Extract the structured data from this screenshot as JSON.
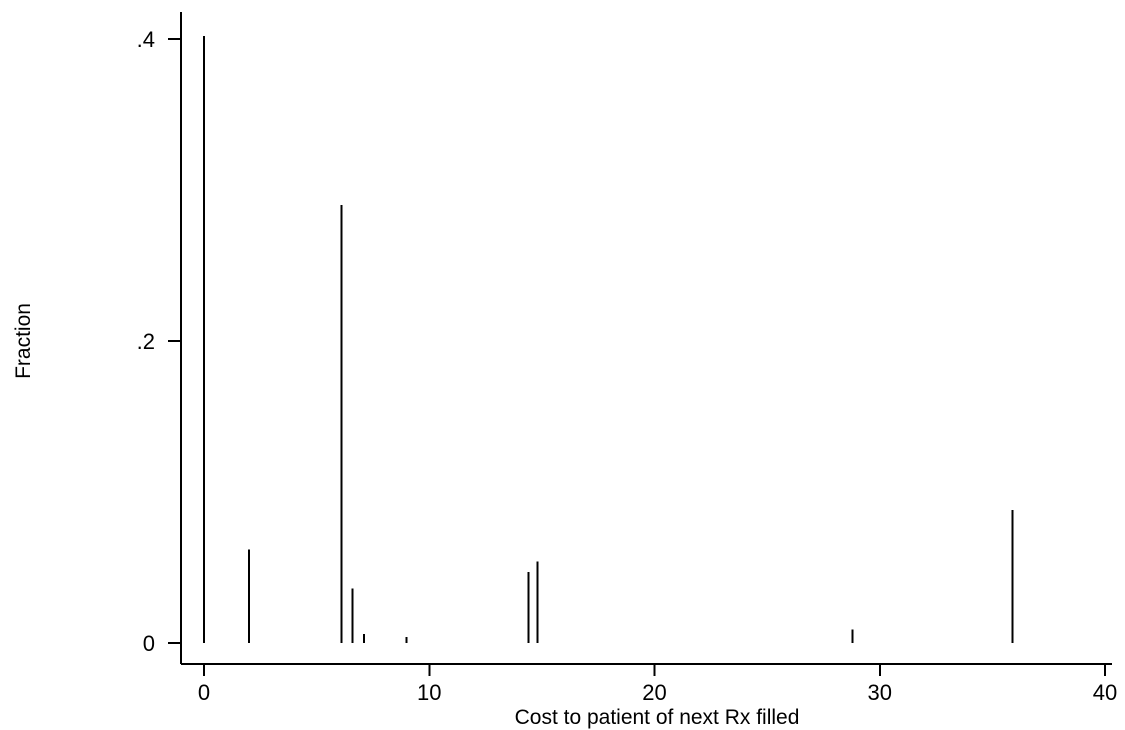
{
  "chart_data": {
    "type": "bar",
    "subtype": "spike",
    "title": "",
    "xlabel": "Cost to patient of next Rx filled",
    "ylabel": "Fraction",
    "xlim": [
      -1,
      40.5
    ],
    "ylim": [
      0,
      0.42
    ],
    "x_ticks": [
      0,
      10,
      20,
      30,
      40
    ],
    "x_tick_labels": [
      "0",
      "10",
      "20",
      "30",
      "40"
    ],
    "y_ticks": [
      0,
      0.2,
      0.4
    ],
    "y_tick_labels": [
      "0",
      ".2",
      ".4"
    ],
    "grid": false,
    "legend": "none",
    "points": [
      {
        "x": 0.0,
        "y": 0.402
      },
      {
        "x": 2.0,
        "y": 0.062
      },
      {
        "x": 6.1,
        "y": 0.29
      },
      {
        "x": 6.6,
        "y": 0.036
      },
      {
        "x": 7.1,
        "y": 0.006
      },
      {
        "x": 9.0,
        "y": 0.004
      },
      {
        "x": 14.4,
        "y": 0.047
      },
      {
        "x": 14.8,
        "y": 0.054
      },
      {
        "x": 28.8,
        "y": 0.009
      },
      {
        "x": 35.9,
        "y": 0.088
      }
    ]
  }
}
